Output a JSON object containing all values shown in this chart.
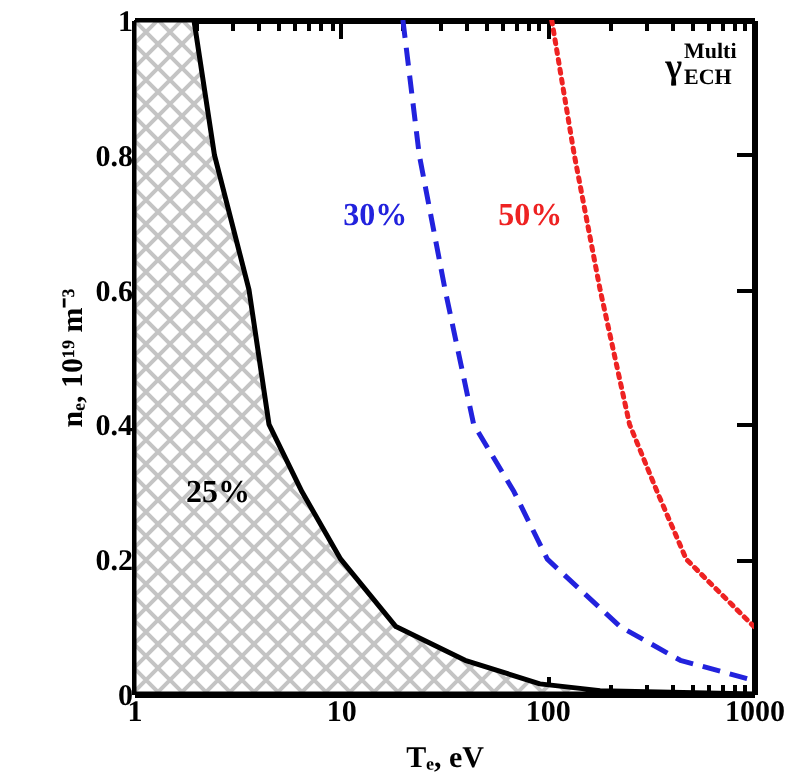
{
  "chart_data": {
    "type": "line",
    "xlabel": "Tₑ, eV",
    "ylabel": "nₑ, 10¹⁹ m⁻³",
    "annotations": [
      "γ$^{Multi}$$_{ECH}$"
    ],
    "log": "x",
    "grid": false,
    "xlim": [
      1,
      1000
    ],
    "ylim": [
      0,
      1
    ],
    "xticks": [
      1,
      {
        "value": 2,
        "label": null
      },
      {
        "value": 3,
        "label": null
      },
      {
        "value": 4,
        "label": null
      },
      {
        "value": 5,
        "label": null
      },
      {
        "value": 6,
        "label": null
      },
      {
        "value": 7,
        "label": null
      },
      {
        "value": 8,
        "label": null
      },
      {
        "value": 9,
        "label": null
      },
      10,
      {
        "value": 20,
        "label": null
      },
      {
        "value": 30,
        "label": null
      },
      {
        "value": 40,
        "label": null
      },
      {
        "value": 50,
        "label": null
      },
      {
        "value": 60,
        "label": null
      },
      {
        "value": 70,
        "label": null
      },
      {
        "value": 80,
        "label": null
      },
      {
        "value": 90,
        "label": null
      },
      100,
      {
        "value": 200,
        "label": null
      },
      {
        "value": 300,
        "label": null
      },
      {
        "value": 400,
        "label": null
      },
      {
        "value": 500,
        "label": null
      },
      {
        "value": 600,
        "label": null
      },
      {
        "value": 700,
        "label": null
      },
      {
        "value": 800,
        "label": null
      },
      {
        "value": 900,
        "label": null
      },
      1000
    ],
    "yticks": [
      0,
      0.2,
      0.4,
      0.6,
      0.8,
      1
    ],
    "series": [
      {
        "name": "25%",
        "type": "area",
        "color": "#000000",
        "line_style": "solid",
        "x": [
          1,
          1.95,
          2.45,
          3.6,
          4.5,
          6.5,
          10,
          18.5,
          40,
          92,
          180,
          1000
        ],
        "values": [
          1,
          1,
          0.8,
          0.6,
          0.4,
          0.3,
          0.2,
          0.1,
          0.05,
          0.015,
          0.005,
          0
        ]
      },
      {
        "name": "30%",
        "color": "#2222dd",
        "line_style": "dashed",
        "x": [
          20,
          24,
          32,
          44,
          69,
          100,
          225,
          440,
          1000
        ],
        "values": [
          1,
          0.8,
          0.6,
          0.4,
          0.3,
          0.2,
          0.1,
          0.05,
          0.02
        ]
      },
      {
        "name": "50%",
        "color": "#ee2222",
        "line_style": "dotted",
        "x": [
          105,
          135,
          180,
          250,
          340,
          470,
          1000
        ],
        "values": [
          1,
          0.8,
          0.6,
          0.4,
          0.3,
          0.2,
          0.1
        ]
      }
    ]
  }
}
